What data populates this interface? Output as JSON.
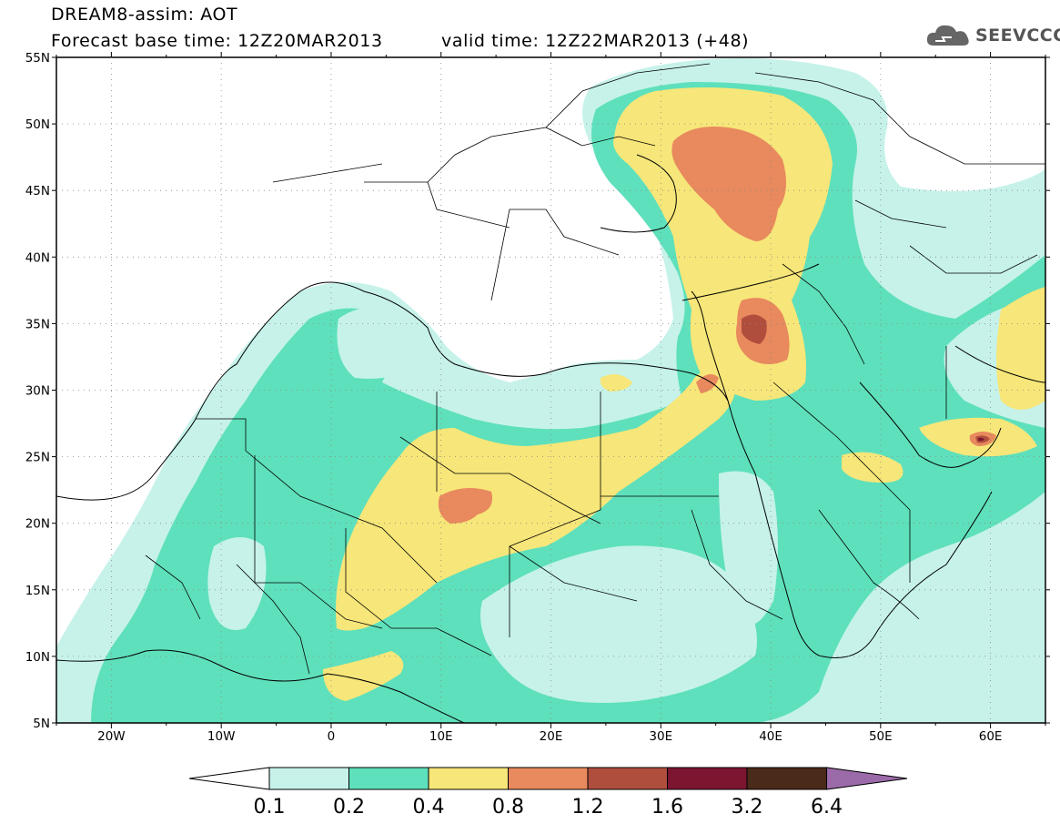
{
  "header": {
    "title": "DREAM8-assim: AOT",
    "base_time": "Forecast base time: 12Z20MAR2013",
    "valid_time": "valid time: 12Z22MAR2013 (+48)"
  },
  "logo": {
    "text": "SEEVCCC",
    "icon": "cloud-icon"
  },
  "map": {
    "lat_labels": [
      "55N",
      "50N",
      "45N",
      "40N",
      "35N",
      "30N",
      "25N",
      "20N",
      "15N",
      "10N",
      "5N"
    ],
    "lon_labels": [
      "20W",
      "10W",
      "0",
      "10E",
      "20E",
      "30E",
      "40E",
      "50E",
      "60E"
    ]
  },
  "colorbar": {
    "labels": [
      "0.1",
      "0.2",
      "0.4",
      "0.8",
      "1.2",
      "1.6",
      "3.2",
      "6.4"
    ],
    "colors": [
      "#c6f2ea",
      "#5ee0bc",
      "#f7e679",
      "#e8895e",
      "#b04e3e",
      "#7c1530",
      "#4a2a18"
    ],
    "under_color": "#ffffff",
    "over_color": "#9b6aa8"
  },
  "colors": {
    "cl_01": "#c6f2ea",
    "cl_02": "#5ee0bc",
    "cl_04": "#f7e679",
    "cl_08": "#e8895e",
    "cl_12": "#b04e3e",
    "cl_16": "#7c1530"
  }
}
